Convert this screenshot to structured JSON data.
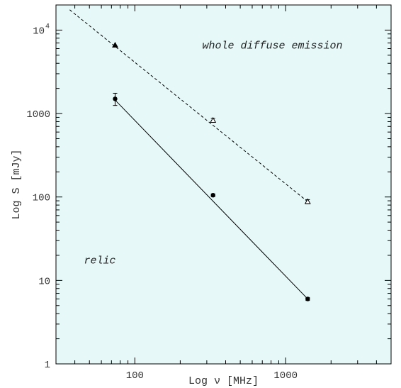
{
  "chart_data": {
    "type": "scatter",
    "xscale": "log",
    "yscale": "log",
    "xlim": [
      30,
      5000
    ],
    "ylim": [
      1,
      20000
    ],
    "xlabel": "Log ν [MHz]",
    "ylabel": "Log S [mJy]",
    "x_ticks": [
      {
        "value": 100,
        "label": "100"
      },
      {
        "value": 1000,
        "label": "1000"
      }
    ],
    "y_ticks": [
      {
        "value": 1,
        "label": "1",
        "sup": ""
      },
      {
        "value": 10,
        "label": "10",
        "sup": ""
      },
      {
        "value": 100,
        "label": "100",
        "sup": ""
      },
      {
        "value": 1000,
        "label": "1000",
        "sup": ""
      },
      {
        "value": 10000,
        "label": "10",
        "sup": "4"
      }
    ],
    "background": "#e6f8f8",
    "series": [
      {
        "id": "diffuse",
        "label": "whole diffuse emission",
        "line_style": "dashed",
        "fit_line": {
          "x": [
            37,
            1400
          ],
          "y": [
            17500,
            88
          ]
        },
        "points": [
          {
            "x": 74,
            "y": 6600,
            "err": 0,
            "marker": "triangle-filled"
          },
          {
            "x": 330,
            "y": 830,
            "err": 45,
            "marker": "triangle-open"
          },
          {
            "x": 1400,
            "y": 88,
            "err": 5,
            "marker": "triangle-open"
          }
        ]
      },
      {
        "id": "relic",
        "label": "relic",
        "line_style": "solid",
        "fit_line": {
          "x": [
            74,
            1400
          ],
          "y": [
            1450,
            6
          ]
        },
        "points": [
          {
            "x": 74,
            "y": 1500,
            "err": 250,
            "marker": "circle"
          },
          {
            "x": 330,
            "y": 105,
            "err": 4,
            "marker": "circle"
          },
          {
            "x": 1400,
            "y": 6,
            "err": 0.25,
            "marker": "circle"
          }
        ]
      }
    ],
    "annotations": [
      {
        "text": "whole diffuse emission",
        "x": 280,
        "y": 6000
      },
      {
        "text": "relic",
        "x": 46,
        "y": 16
      }
    ]
  }
}
